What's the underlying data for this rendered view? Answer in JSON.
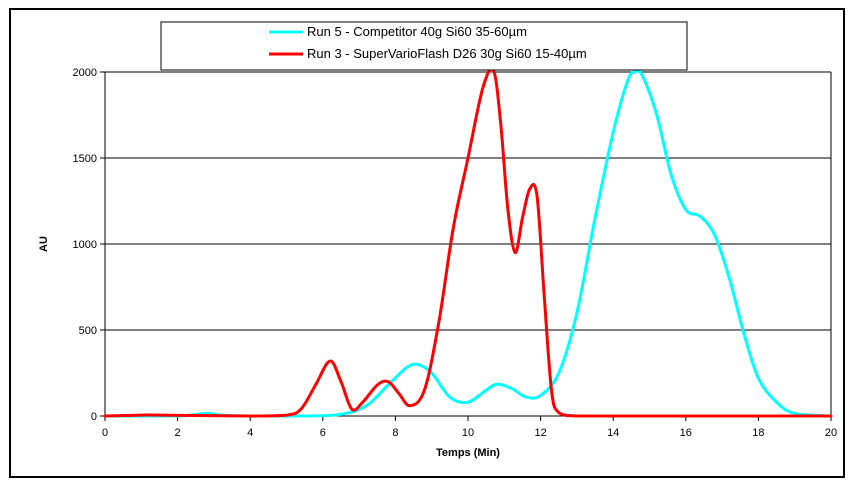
{
  "chart_data": {
    "type": "line",
    "title": "",
    "xlabel": "Temps (Min)",
    "ylabel": "AU",
    "xlim": [
      0,
      20
    ],
    "ylim": [
      0,
      2000
    ],
    "x_ticks": [
      "0",
      "2",
      "4",
      "6",
      "8",
      "10",
      "12",
      "14",
      "16",
      "18",
      "20"
    ],
    "y_ticks": [
      "0",
      "500",
      "1000",
      "1500",
      "2000"
    ],
    "grid": "horizontal",
    "legend_position": "top",
    "series": [
      {
        "name": "Run 5 - Competitor 40g Si60 35-60µm",
        "color": "#00ffff",
        "x": [
          0,
          2,
          2.8,
          3.2,
          4,
          5.5,
          6.5,
          7.2,
          7.8,
          8.3,
          8.6,
          9.0,
          9.5,
          10.0,
          10.5,
          10.8,
          11.2,
          11.6,
          12.0,
          12.5,
          13.0,
          13.5,
          14.0,
          14.4,
          14.6,
          14.8,
          15.2,
          15.6,
          16.0,
          16.4,
          16.8,
          17.2,
          17.6,
          18.0,
          18.5,
          19.0,
          20
        ],
        "y": [
          0,
          0,
          15,
          5,
          0,
          0,
          10,
          60,
          180,
          280,
          300,
          250,
          110,
          80,
          150,
          185,
          160,
          110,
          120,
          250,
          600,
          1150,
          1650,
          1950,
          2000,
          1980,
          1750,
          1400,
          1200,
          1160,
          1050,
          800,
          480,
          220,
          80,
          15,
          0
        ]
      },
      {
        "name": "Run 3 - SuperVarioFlash D26 30g Si60 15-40µm",
        "color": "#ff0000",
        "x": [
          0,
          1,
          1.5,
          4,
          5,
          5.4,
          5.8,
          6.2,
          6.5,
          6.8,
          7.1,
          7.5,
          7.8,
          8.1,
          8.4,
          8.8,
          9.2,
          9.6,
          10.0,
          10.4,
          10.7,
          10.9,
          11.1,
          11.3,
          11.5,
          11.7,
          11.9,
          12.1,
          12.3,
          12.5,
          13,
          14,
          20
        ],
        "y": [
          0,
          5,
          5,
          0,
          5,
          40,
          180,
          320,
          200,
          40,
          80,
          180,
          200,
          130,
          60,
          150,
          550,
          1100,
          1500,
          1900,
          2010,
          1700,
          1200,
          950,
          1150,
          1320,
          1280,
          700,
          150,
          20,
          0,
          0,
          0
        ]
      }
    ]
  }
}
